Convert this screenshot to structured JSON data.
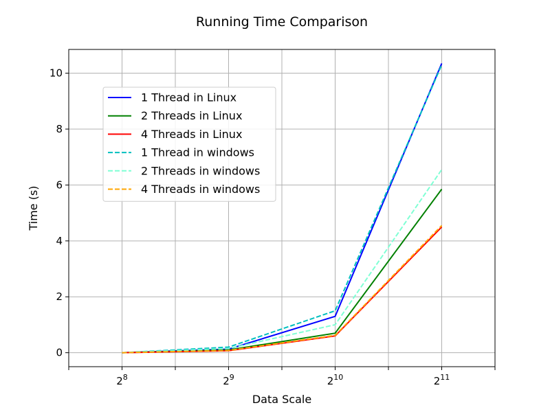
{
  "chart_data": {
    "type": "line",
    "title": "Running Time Comparison",
    "xlabel": "Data Scale",
    "ylabel": "Time (s)",
    "x": [
      8,
      9,
      10,
      11
    ],
    "x_tick_labels": [
      {
        "base": "2",
        "exp": "8"
      },
      {
        "base": "2",
        "exp": "9"
      },
      {
        "base": "2",
        "exp": "10"
      },
      {
        "base": "2",
        "exp": "11"
      }
    ],
    "xlim": [
      7.5,
      11.5
    ],
    "ylim": [
      -0.5,
      10.85
    ],
    "y_ticks": [
      0,
      2,
      4,
      6,
      8,
      10
    ],
    "grid": true,
    "legend_position": "upper-left",
    "series": [
      {
        "name": "1 Thread in Linux",
        "color": "#0000ff",
        "dash": "solid",
        "values": [
          0.0,
          0.13,
          1.3,
          10.35
        ]
      },
      {
        "name": "2 Threads in Linux",
        "color": "#008000",
        "dash": "solid",
        "values": [
          0.0,
          0.1,
          0.7,
          5.85
        ]
      },
      {
        "name": "4 Threads in Linux",
        "color": "#ff0000",
        "dash": "solid",
        "values": [
          0.0,
          0.07,
          0.6,
          4.5
        ]
      },
      {
        "name": "1 Thread in windows",
        "color": "#00bfbf",
        "dash": "dashed",
        "values": [
          0.0,
          0.2,
          1.5,
          10.3
        ]
      },
      {
        "name": "2 Threads in windows",
        "color": "#7fffd4",
        "dash": "dashed",
        "values": [
          0.0,
          0.15,
          1.0,
          6.55
        ]
      },
      {
        "name": "4 Threads in windows",
        "color": "#ffa500",
        "dash": "dashed",
        "values": [
          0.0,
          0.08,
          0.62,
          4.55
        ]
      }
    ]
  }
}
